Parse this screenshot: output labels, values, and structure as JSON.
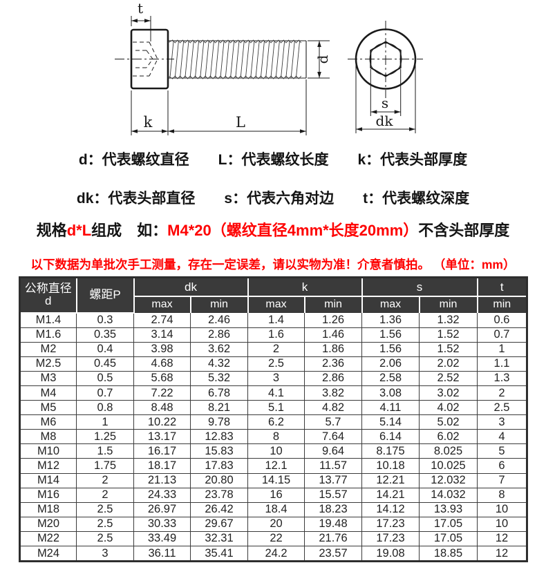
{
  "colors": {
    "accent_red": "#fe0000",
    "ink": "#141414",
    "table_header_bg": "#3a3a3a",
    "table_header_fg": "#ffffff",
    "table_border": "#3a3a3a"
  },
  "diagram": {
    "side_view_labels": {
      "t": "t",
      "k": "k",
      "L": "L",
      "d": "d"
    },
    "end_view_labels": {
      "s": "s",
      "dk": "dk"
    }
  },
  "legend": {
    "line1": [
      "d：代表螺纹直径",
      "L：代表螺纹长度",
      "k：代表头部厚度"
    ],
    "line2": [
      "dk：代表头部直径",
      "s：代表六角对边",
      "t：代表螺纹深度"
    ]
  },
  "spec_line": {
    "segments": [
      {
        "text": "规格",
        "red": false
      },
      {
        "text": "d*L",
        "red": true
      },
      {
        "text": "组成　如：",
        "red": false
      },
      {
        "text": "M4*20（螺纹直径4mm*长度20mm）",
        "red": true
      },
      {
        "text": "不含头部厚度",
        "red": false
      }
    ]
  },
  "notice": "以下数据为单批次手工测量，存在一定误差，请以实物为准！介意者慎拍。 （单位：mm）",
  "table": {
    "col1_header_line1": "公称直径",
    "col1_header_line2": "d",
    "col2_header": "螺距P",
    "groups": [
      {
        "label": "dk",
        "subs": [
          "max",
          "min"
        ]
      },
      {
        "label": "k",
        "subs": [
          "max",
          "min"
        ]
      },
      {
        "label": "s",
        "subs": [
          "max",
          "min"
        ]
      },
      {
        "label": "t",
        "subs": [
          "min"
        ]
      }
    ],
    "rows": [
      [
        "M1.4",
        "0.3",
        "2.74",
        "2.46",
        "1.4",
        "1.26",
        "1.36",
        "1.32",
        "0.6"
      ],
      [
        "M1.6",
        "0.35",
        "3.14",
        "2.86",
        "1.6",
        "1.46",
        "1.56",
        "1.52",
        "0.7"
      ],
      [
        "M2",
        "0.4",
        "3.98",
        "3.62",
        "2",
        "1.86",
        "1.56",
        "1.52",
        "1"
      ],
      [
        "M2.5",
        "0.45",
        "4.68",
        "4.32",
        "2.5",
        "2.36",
        "2.06",
        "2.02",
        "1.1"
      ],
      [
        "M3",
        "0.5",
        "5.68",
        "5.32",
        "3",
        "2.86",
        "2.58",
        "2.52",
        "1.3"
      ],
      [
        "M4",
        "0.7",
        "7.22",
        "6.78",
        "4.1",
        "3.82",
        "3.08",
        "3.02",
        "2"
      ],
      [
        "M5",
        "0.8",
        "8.48",
        "8.21",
        "5.1",
        "4.82",
        "4.11",
        "4.02",
        "2.5"
      ],
      [
        "M6",
        "1",
        "10.22",
        "9.78",
        "6.2",
        "5.7",
        "5.14",
        "5.02",
        "3"
      ],
      [
        "M8",
        "1.25",
        "13.17",
        "12.83",
        "8",
        "7.64",
        "6.14",
        "6.02",
        "4"
      ],
      [
        "M10",
        "1.5",
        "16.17",
        "15.83",
        "10",
        "9.64",
        "8.175",
        "8.025",
        "5"
      ],
      [
        "M12",
        "1.75",
        "18.17",
        "17.83",
        "12.1",
        "11.57",
        "10.18",
        "10.025",
        "6"
      ],
      [
        "M14",
        "2",
        "21.13",
        "20.80",
        "14.15",
        "13.77",
        "12.21",
        "12.032",
        "7"
      ],
      [
        "M16",
        "2",
        "24.33",
        "23.78",
        "16",
        "15.57",
        "14.21",
        "14.032",
        "8"
      ],
      [
        "M18",
        "2.5",
        "26.97",
        "26.42",
        "18.4",
        "18.23",
        "14.12",
        "13.93",
        "10"
      ],
      [
        "M20",
        "2.5",
        "30.33",
        "29.67",
        "20",
        "19.48",
        "17.23",
        "17.05",
        "10"
      ],
      [
        "M22",
        "2.5",
        "33.49",
        "32.31",
        "22",
        "21.76",
        "17.23",
        "17.05",
        "12"
      ],
      [
        "M24",
        "3",
        "36.11",
        "35.41",
        "24.2",
        "23.57",
        "19.08",
        "18.85",
        "12"
      ]
    ]
  }
}
